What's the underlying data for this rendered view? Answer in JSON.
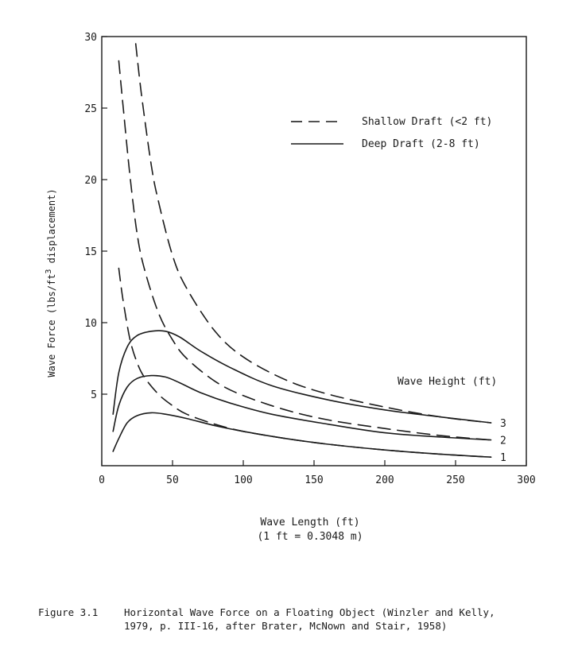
{
  "chart_data": {
    "type": "line",
    "xlabel": "Wave Length (ft)",
    "xlabel_note": "(1 ft = 0.3048 m)",
    "ylabel_prefix": "Wave Force (lbs/ft",
    "ylabel_sup": "3",
    "ylabel_suffix": " displacement)",
    "xlim": [
      0,
      300
    ],
    "ylim": [
      0,
      30
    ],
    "x_ticks": [
      0,
      50,
      100,
      150,
      200,
      250,
      300
    ],
    "y_ticks": [
      5,
      10,
      15,
      20,
      25,
      30
    ],
    "x_tick_labels": [
      "0",
      "50",
      "100",
      "150",
      "200",
      "250",
      "300"
    ],
    "y_tick_labels": [
      "5",
      "10",
      "15",
      "20",
      "25",
      "30"
    ],
    "grid": false,
    "legend": {
      "placement": "top-right",
      "entries": [
        {
          "label": "Shallow Draft (<2 ft)",
          "style": "dashed"
        },
        {
          "label": "Deep Draft (2-8 ft)",
          "style": "solid"
        }
      ]
    },
    "wave_height_title": "Wave Height (ft)",
    "series": [
      {
        "draft": "deep",
        "style": "solid",
        "label": "1",
        "x": [
          8,
          12,
          18,
          25,
          35,
          45,
          60,
          80,
          100,
          130,
          160,
          200,
          240,
          275
        ],
        "y": [
          1.0,
          1.9,
          3.0,
          3.5,
          3.7,
          3.6,
          3.3,
          2.8,
          2.4,
          1.9,
          1.5,
          1.1,
          0.8,
          0.6
        ]
      },
      {
        "draft": "deep",
        "style": "solid",
        "label": "2",
        "x": [
          8,
          12,
          18,
          25,
          35,
          45,
          55,
          70,
          90,
          120,
          160,
          200,
          240,
          275
        ],
        "y": [
          2.4,
          4.2,
          5.5,
          6.1,
          6.3,
          6.2,
          5.8,
          5.1,
          4.4,
          3.6,
          2.9,
          2.3,
          2.0,
          1.8
        ]
      },
      {
        "draft": "deep",
        "style": "solid",
        "label": "3",
        "x": [
          8,
          12,
          18,
          25,
          35,
          45,
          55,
          70,
          90,
          120,
          160,
          200,
          240,
          275
        ],
        "y": [
          3.6,
          6.5,
          8.3,
          9.1,
          9.4,
          9.4,
          9.0,
          8.0,
          6.9,
          5.6,
          4.6,
          3.9,
          3.4,
          3.0
        ]
      },
      {
        "draft": "shallow",
        "style": "dashed",
        "label": "1",
        "x": [
          12,
          15,
          20,
          25,
          30,
          40,
          50,
          60,
          80,
          100,
          130,
          160,
          200,
          240,
          275
        ],
        "y": [
          13.8,
          11.6,
          8.8,
          7.2,
          6.2,
          5.0,
          4.2,
          3.6,
          2.9,
          2.4,
          1.9,
          1.5,
          1.1,
          0.8,
          0.6
        ]
      },
      {
        "draft": "shallow",
        "style": "dashed",
        "label": "2",
        "x": [
          12,
          15,
          20,
          25,
          30,
          40,
          50,
          60,
          80,
          100,
          130,
          160,
          200,
          240,
          275
        ],
        "y": [
          28.3,
          25.2,
          20.2,
          16.2,
          13.8,
          10.7,
          8.8,
          7.5,
          5.9,
          4.9,
          3.9,
          3.2,
          2.6,
          2.1,
          1.8
        ]
      },
      {
        "draft": "shallow",
        "style": "dashed",
        "label": "3",
        "x": [
          24,
          28,
          35,
          40,
          50,
          60,
          80,
          100,
          130,
          160,
          200,
          240,
          275
        ],
        "y": [
          29.5,
          26.0,
          21.0,
          18.5,
          14.7,
          12.4,
          9.4,
          7.6,
          6.0,
          5.0,
          4.1,
          3.4,
          3.0
        ]
      }
    ]
  },
  "caption": {
    "figure": "Figure 3.1",
    "line1": "Horizontal Wave Force on a Floating Object (Winzler and Kelly,",
    "line2": "1979, p. III-16, after Brater, McNown and Stair, 1958)"
  }
}
